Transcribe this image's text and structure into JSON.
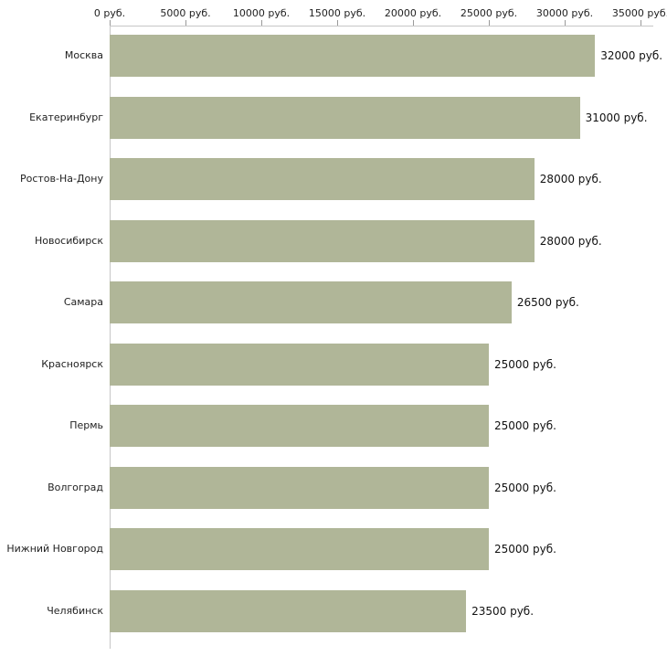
{
  "chart_data": {
    "type": "bar",
    "orientation": "horizontal",
    "title": "",
    "xlabel": "",
    "ylabel": "",
    "unit": "руб.",
    "categories": [
      "Москва",
      "Екатеринбург",
      "Ростов-На-Дону",
      "Новосибирск",
      "Самара",
      "Красноярск",
      "Пермь",
      "Волгоград",
      "Нижний Новгород",
      "Челябинск"
    ],
    "values": [
      32000,
      31000,
      28000,
      28000,
      26500,
      25000,
      25000,
      25000,
      25000,
      23500
    ],
    "value_labels": [
      "32000 руб.",
      "31000 руб.",
      "28000 руб.",
      "28000 руб.",
      "26500 руб.",
      "25000 руб.",
      "25000 руб.",
      "25000 руб.",
      "25000 руб.",
      "23500 руб."
    ],
    "x_ticks": [
      0,
      5000,
      10000,
      15000,
      20000,
      25000,
      30000,
      35000
    ],
    "x_tick_labels": [
      "0 руб.",
      "5000 руб.",
      "10000 руб.",
      "15000 руб.",
      "20000 руб.",
      "25000 руб.",
      "30000 руб.",
      "35000 руб."
    ],
    "xlim": [
      0,
      35000
    ],
    "grid": false,
    "legend": "none",
    "axis_position": "top",
    "bar_color": "#b0b698",
    "axis_color": "#c6c6c6",
    "background_color": "#ffffff"
  }
}
